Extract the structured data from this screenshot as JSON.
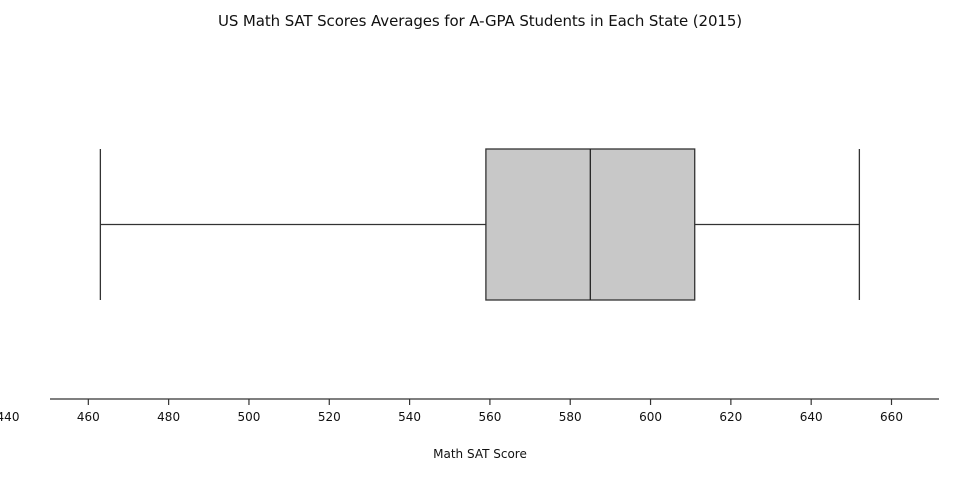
{
  "chart_data": {
    "type": "box",
    "title": "US Math SAT Scores Averages for A-GPA Students in Each State (2015)",
    "xlabel": "Math SAT Score",
    "ylabel": "",
    "orientation": "horizontal",
    "xlim": [
      440,
      672
    ],
    "x_ticks": [
      440,
      460,
      480,
      500,
      520,
      540,
      560,
      580,
      600,
      620,
      640,
      660
    ],
    "box": {
      "min": 463,
      "q1": 559,
      "median": 585,
      "q3": 611,
      "max": 652
    },
    "box_fill": "#c8c8c8",
    "line_color": "#333333",
    "grid": false,
    "legend": "none"
  }
}
